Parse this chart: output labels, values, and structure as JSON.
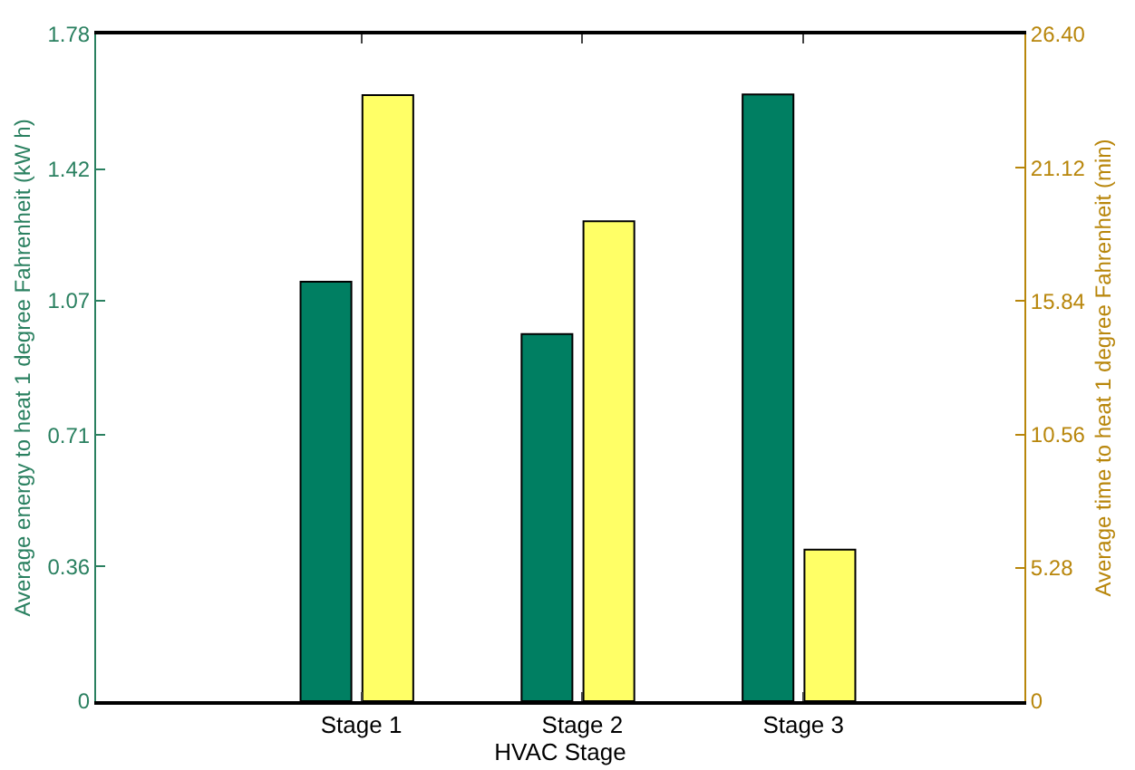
{
  "chart_data": {
    "type": "bar",
    "xlabel": "HVAC Stage",
    "ylabel": "Average energy to heat 1 degree Fahrenheit (kW h)",
    "y2label": "Average time to heat 1 degree Fahrenheit (min)",
    "categories": [
      "Stage 1",
      "Stage 2",
      "Stage 3"
    ],
    "series": [
      {
        "color": "#007f62",
        "values": [
          1.12,
          0.98,
          1.62
        ]
      },
      {
        "color": "#ffff66",
        "axis": "y2",
        "values": [
          24,
          19,
          6.0
        ]
      }
    ],
    "ylim": [
      0,
      1.78
    ],
    "yticks": [
      0,
      0.36,
      0.71,
      1.07,
      1.42,
      1.78
    ],
    "y2lim": [
      0,
      26.4
    ],
    "y2ticks": [
      0,
      5.28,
      10.56,
      15.84,
      21.12,
      {
        "value": 26.4,
        "label": "26.40"
      }
    ],
    "grid": false
  }
}
